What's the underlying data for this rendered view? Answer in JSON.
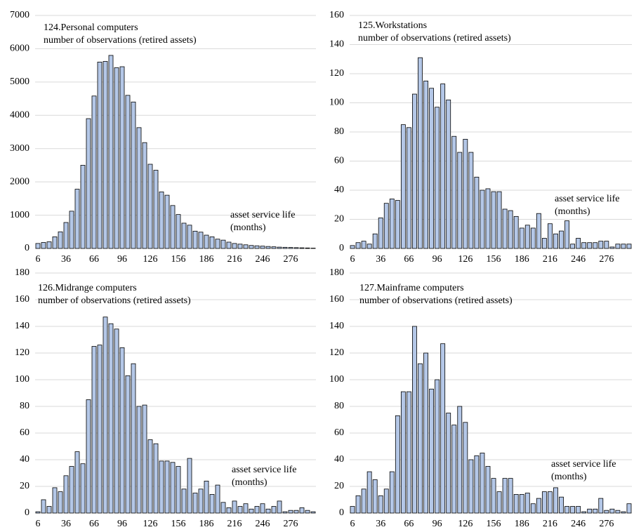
{
  "chart_data": [
    {
      "type": "bar",
      "title": "124.Personal computers",
      "subtitle": "number of observations (retired assets)",
      "annotations": [
        "asset service life",
        "(months)"
      ],
      "categories": [
        "6",
        null,
        null,
        null,
        null,
        "36",
        null,
        null,
        null,
        null,
        "66",
        null,
        null,
        null,
        null,
        "96",
        null,
        null,
        null,
        null,
        "126",
        null,
        null,
        null,
        null,
        "156",
        null,
        null,
        null,
        null,
        "186",
        null,
        null,
        null,
        null,
        "216",
        null,
        null,
        null,
        null,
        "246",
        null,
        null,
        null,
        null,
        "276",
        null,
        null,
        null,
        null
      ],
      "values": [
        150,
        180,
        200,
        350,
        500,
        780,
        1120,
        1780,
        2500,
        3900,
        4580,
        5600,
        5620,
        5800,
        5430,
        5460,
        4600,
        4400,
        3630,
        3180,
        2530,
        2350,
        1700,
        1600,
        1290,
        1020,
        760,
        700,
        520,
        490,
        400,
        350,
        280,
        250,
        190,
        150,
        130,
        110,
        90,
        80,
        70,
        60,
        50,
        40,
        35,
        30,
        25,
        20,
        15,
        10
      ],
      "color": "#b4c7e7",
      "ylim": [
        0,
        7000
      ],
      "yticks": [
        0,
        1000,
        2000,
        3000,
        4000,
        5000,
        6000,
        7000
      ],
      "grid": true
    },
    {
      "type": "bar",
      "title": "125.Workstations",
      "subtitle": "number of observations (retired assets)",
      "annotations": [
        "asset service life",
        "(months)"
      ],
      "categories": [
        "6",
        null,
        null,
        null,
        null,
        "36",
        null,
        null,
        null,
        null,
        "66",
        null,
        null,
        null,
        null,
        "96",
        null,
        null,
        null,
        null,
        "126",
        null,
        null,
        null,
        null,
        "156",
        null,
        null,
        null,
        null,
        "186",
        null,
        null,
        null,
        null,
        "216",
        null,
        null,
        null,
        null,
        "246",
        null,
        null,
        null,
        null,
        "276",
        null,
        null,
        null,
        null
      ],
      "values": [
        2,
        4,
        5,
        3,
        10,
        21,
        31,
        34,
        33,
        85,
        83,
        106,
        131,
        115,
        110,
        97,
        113,
        102,
        77,
        66,
        75,
        66,
        49,
        40,
        41,
        39,
        39,
        27,
        26,
        22,
        14,
        16,
        14,
        24,
        7,
        17,
        10,
        12,
        19,
        3,
        7,
        4,
        4,
        4,
        5,
        5,
        1,
        3,
        3,
        3
      ],
      "color": "#b4c7e7",
      "ylim": [
        0,
        160
      ],
      "yticks": [
        0,
        20,
        40,
        60,
        80,
        100,
        120,
        140,
        160
      ],
      "grid": true
    },
    {
      "type": "bar",
      "title": "126.Midrange computers",
      "subtitle": "number of observations (retired assets)",
      "annotations": [
        "asset service life",
        "(months)"
      ],
      "categories": [
        "6",
        null,
        null,
        null,
        null,
        "36",
        null,
        null,
        null,
        null,
        "66",
        null,
        null,
        null,
        null,
        "96",
        null,
        null,
        null,
        null,
        "126",
        null,
        null,
        null,
        null,
        "156",
        null,
        null,
        null,
        null,
        "186",
        null,
        null,
        null,
        null,
        "216",
        null,
        null,
        null,
        null,
        "246",
        null,
        null,
        null,
        null,
        "276",
        null,
        null,
        null,
        null
      ],
      "values": [
        1,
        10,
        5,
        19,
        16,
        28,
        35,
        46,
        37,
        85,
        125,
        126,
        147,
        142,
        138,
        124,
        103,
        112,
        80,
        81,
        55,
        52,
        39,
        39,
        38,
        35,
        18,
        41,
        15,
        18,
        24,
        14,
        21,
        8,
        4,
        9,
        5,
        7,
        3,
        5,
        7,
        3,
        5,
        9,
        1,
        2,
        2,
        4,
        2,
        1
      ],
      "color": "#b4c7e7",
      "ylim": [
        0,
        180
      ],
      "yticks": [
        0,
        20,
        40,
        60,
        80,
        100,
        120,
        140,
        160,
        180
      ],
      "grid": true
    },
    {
      "type": "bar",
      "title": "127.Mainframe computers",
      "subtitle": "number of observations (retired assets)",
      "annotations": [
        "asset service life",
        "(months)"
      ],
      "categories": [
        "6",
        null,
        null,
        null,
        null,
        "36",
        null,
        null,
        null,
        null,
        "66",
        null,
        null,
        null,
        null,
        "96",
        null,
        null,
        null,
        null,
        "126",
        null,
        null,
        null,
        null,
        "156",
        null,
        null,
        null,
        null,
        "186",
        null,
        null,
        null,
        null,
        "216",
        null,
        null,
        null,
        null,
        "246",
        null,
        null,
        null,
        null,
        "276",
        null,
        null,
        null,
        null
      ],
      "values": [
        5,
        13,
        18,
        31,
        25,
        13,
        18,
        31,
        73,
        91,
        91,
        140,
        112,
        120,
        93,
        100,
        127,
        75,
        66,
        80,
        68,
        40,
        43,
        45,
        35,
        26,
        16,
        26,
        26,
        14,
        14,
        15,
        7,
        11,
        16,
        16,
        19,
        12,
        5,
        5,
        5,
        1,
        3,
        3,
        11,
        2,
        3,
        2,
        1,
        7
      ],
      "color": "#b4c7e7",
      "ylim": [
        0,
        180
      ],
      "yticks": [
        0,
        20,
        40,
        60,
        80,
        100,
        120,
        140,
        160,
        180
      ],
      "grid": true
    }
  ]
}
